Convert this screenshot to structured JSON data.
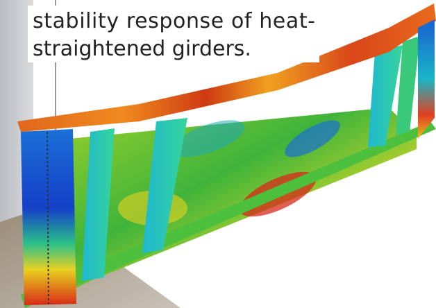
{
  "caption": {
    "lines": [
      "stability response of heat-",
      "straightened girders."
    ]
  }
}
